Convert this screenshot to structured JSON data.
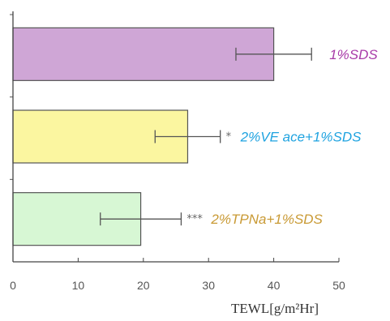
{
  "chart_data": {
    "type": "bar",
    "orientation": "horizontal",
    "categories": [
      "1%SDS",
      "2%VE ace+1%SDS",
      "2%TPNa+1%SDS"
    ],
    "values": [
      40,
      26.8,
      19.6
    ],
    "errors": [
      5.8,
      5.0,
      6.2
    ],
    "significance": [
      "",
      "*",
      "***"
    ],
    "bar_colors": [
      "#cfa6d6",
      "#fbf6a0",
      "#d7f7d4"
    ],
    "label_colors": [
      "#a83ba8",
      "#1fa3e0",
      "#c99a35"
    ],
    "xlabel": "TEWL[g/m²Hr]",
    "xlim": [
      0,
      50
    ],
    "xticks": [
      0,
      10,
      20,
      30,
      40,
      50
    ],
    "grid": false
  }
}
